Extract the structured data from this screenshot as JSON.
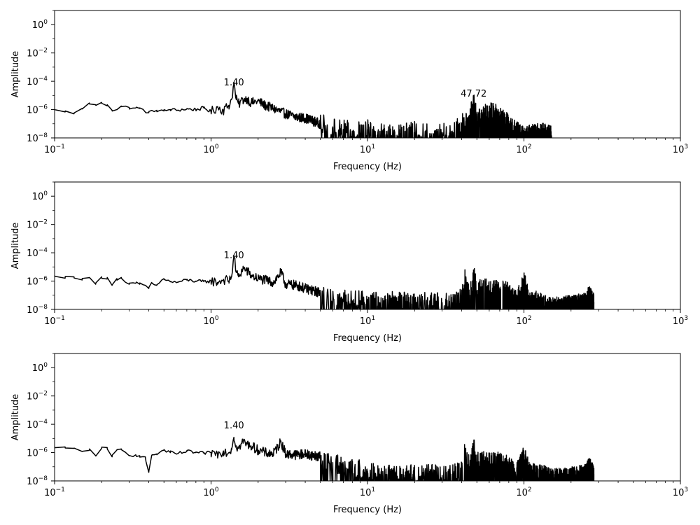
{
  "chart_data": [
    {
      "type": "line",
      "title": "",
      "xlabel": "Frequency (Hz)",
      "ylabel": "Amplitude",
      "xscale": "log",
      "yscale": "log",
      "xlim": [
        0.1,
        1000
      ],
      "ylim": [
        1e-08,
        10
      ],
      "grid": false,
      "line_color": "#000000",
      "x_tick_labels": [
        "10^-1",
        "10^0",
        "10^1",
        "10^2",
        "10^3"
      ],
      "y_tick_labels": [
        "10^-8",
        "10^-6",
        "10^-4",
        "10^-2",
        "10^0"
      ],
      "annotations": [
        {
          "text": "1.40",
          "x": 1.4,
          "y": 5e-05
        },
        {
          "text": "47.72",
          "x": 47.72,
          "y": 8.22e-06
        }
      ],
      "series": [
        {
          "x": [
            0.1,
            0.117,
            0.133,
            0.15,
            0.167,
            0.183,
            0.2,
            0.217,
            0.233,
            0.25,
            0.267,
            0.3,
            0.33,
            0.35,
            0.4,
            0.45,
            0.5,
            0.55,
            0.6,
            0.7,
            0.8,
            0.9,
            1.0,
            1.1,
            1.2,
            1.3,
            1.35,
            1.4,
            1.45,
            1.5,
            1.6,
            1.7,
            1.8,
            2.0,
            2.2,
            2.5,
            3.0,
            3.5,
            4.0,
            5.0,
            6.0,
            7.0,
            8.0,
            10.0,
            12.0,
            15.0,
            20.0,
            25.0,
            30.0,
            35.0,
            40.0,
            45.0,
            47.72,
            50.0,
            55.0,
            60.0,
            65.0,
            70.0,
            80.0,
            90.0,
            100.0,
            110.0,
            120.0,
            130.0,
            140.0,
            150.0
          ],
          "y": [
            1e-06,
            8e-07,
            5e-07,
            1.2e-06,
            2.5e-06,
            2.2e-06,
            3.2e-06,
            2.2e-06,
            9e-07,
            1e-06,
            1.6e-06,
            1.4e-06,
            1.3e-06,
            1.2e-06,
            6e-07,
            9e-07,
            8e-07,
            1e-06,
            9e-07,
            1.1e-06,
            1e-06,
            1.3e-06,
            7e-07,
            1.5e-06,
            9e-07,
            2e-06,
            5e-06,
            7e-05,
            5e-06,
            2.5e-06,
            5e-06,
            6e-06,
            3e-06,
            4e-06,
            2e-06,
            1.2e-06,
            5e-07,
            3e-07,
            2.5e-07,
            1e-07,
            6e-08,
            4e-08,
            3e-08,
            4e-08,
            2e-08,
            1.5e-08,
            3e-08,
            2e-08,
            2.5e-08,
            2e-08,
            1e-07,
            2e-07,
            8e-06,
            3e-07,
            4e-07,
            7e-07,
            6e-07,
            3e-07,
            1e-07,
            3e-08,
            1.5e-08,
            2.5e-08,
            2e-08,
            3e-08,
            2e-08,
            1.5e-08
          ]
        }
      ]
    },
    {
      "type": "line",
      "title": "",
      "xlabel": "Frequency (Hz)",
      "ylabel": "Amplitude",
      "xscale": "log",
      "yscale": "log",
      "xlim": [
        0.1,
        1000
      ],
      "ylim": [
        1e-08,
        10
      ],
      "grid": false,
      "line_color": "#000000",
      "x_tick_labels": [
        "10^-1",
        "10^0",
        "10^1",
        "10^2",
        "10^3"
      ],
      "y_tick_labels": [
        "10^-8",
        "10^-6",
        "10^-4",
        "10^-2",
        "10^0"
      ],
      "annotations": [
        {
          "text": "1.40",
          "x": 1.4,
          "y": 4e-05
        }
      ],
      "series": [
        {
          "x": [
            0.1,
            0.117,
            0.133,
            0.15,
            0.167,
            0.183,
            0.2,
            0.217,
            0.233,
            0.25,
            0.267,
            0.3,
            0.33,
            0.35,
            0.38,
            0.4,
            0.42,
            0.45,
            0.5,
            0.55,
            0.6,
            0.7,
            0.8,
            0.9,
            1.0,
            1.1,
            1.2,
            1.3,
            1.35,
            1.4,
            1.45,
            1.5,
            1.6,
            1.7,
            1.8,
            2.0,
            2.2,
            2.5,
            2.8,
            3.0,
            3.5,
            4.0,
            5.0,
            6.0,
            7.0,
            8.0,
            10.0,
            12.0,
            15.0,
            20.0,
            25.0,
            30.0,
            35.0,
            40.0,
            42.0,
            45.0,
            47.72,
            50.0,
            55.0,
            60.0,
            70.0,
            80.0,
            90.0,
            100.0,
            110.0,
            120.0,
            130.0,
            140.0,
            150.0,
            200.0,
            250.0,
            260.0,
            280.0
          ],
          "y": [
            2.2e-06,
            2.1e-06,
            2e-06,
            1.2e-06,
            1.8e-06,
            6e-07,
            2e-06,
            1.8e-06,
            5e-07,
            1.5e-06,
            1.6e-06,
            6e-07,
            7e-07,
            6e-07,
            5e-07,
            3e-07,
            7e-07,
            5e-07,
            1.5e-06,
            9e-07,
            8e-07,
            1.2e-06,
            1e-06,
            9e-07,
            1e-06,
            8e-07,
            1.3e-06,
            1e-06,
            2e-06,
            6e-05,
            4e-06,
            2e-06,
            8e-06,
            5e-06,
            2.5e-06,
            1.5e-06,
            1.2e-06,
            8e-07,
            4e-06,
            6e-07,
            5e-07,
            3e-07,
            1.5e-07,
            7e-08,
            5e-08,
            4e-08,
            5e-08,
            3e-08,
            4e-08,
            3e-08,
            4e-08,
            3e-08,
            3e-08,
            8e-08,
            1.5e-06,
            1e-07,
            3e-06,
            2e-07,
            4e-07,
            2e-07,
            3e-07,
            1.5e-07,
            4e-08,
            1e-06,
            3e-08,
            4e-08,
            3e-08,
            2e-08,
            1.5e-08,
            2e-08,
            3e-08,
            1e-07,
            3e-08
          ]
        }
      ]
    },
    {
      "type": "line",
      "title": "",
      "xlabel": "Frequency (Hz)",
      "ylabel": "Amplitude",
      "xscale": "log",
      "yscale": "log",
      "xlim": [
        0.1,
        1000
      ],
      "ylim": [
        1e-08,
        10
      ],
      "grid": false,
      "line_color": "#000000",
      "x_tick_labels": [
        "10^-1",
        "10^0",
        "10^1",
        "10^2",
        "10^3"
      ],
      "y_tick_labels": [
        "10^-8",
        "10^-6",
        "10^-4",
        "10^-2",
        "10^0"
      ],
      "annotations": [
        {
          "text": "1.40",
          "x": 1.4,
          "y": 5e-05
        }
      ],
      "series": [
        {
          "x": [
            0.1,
            0.117,
            0.133,
            0.15,
            0.167,
            0.183,
            0.2,
            0.217,
            0.233,
            0.25,
            0.267,
            0.3,
            0.33,
            0.35,
            0.38,
            0.4,
            0.42,
            0.45,
            0.5,
            0.55,
            0.6,
            0.7,
            0.8,
            0.9,
            1.0,
            1.1,
            1.2,
            1.3,
            1.35,
            1.4,
            1.45,
            1.5,
            1.6,
            1.7,
            1.8,
            2.0,
            2.2,
            2.5,
            2.8,
            3.0,
            3.5,
            4.0,
            5.0,
            6.0,
            7.0,
            8.0,
            10.0,
            12.0,
            15.0,
            20.0,
            25.0,
            30.0,
            35.0,
            40.0,
            42.0,
            45.0,
            47.72,
            50.0,
            55.0,
            60.0,
            70.0,
            80.0,
            90.0,
            100.0,
            110.0,
            120.0,
            130.0,
            140.0,
            150.0,
            200.0,
            250.0,
            260.0,
            280.0
          ],
          "y": [
            2.2e-06,
            2.1e-06,
            2e-06,
            1.2e-06,
            1.8e-06,
            6e-07,
            2e-06,
            1.8e-06,
            5e-07,
            1.5e-06,
            1.6e-06,
            6e-07,
            7e-07,
            6e-07,
            5e-07,
            4e-08,
            7e-07,
            8e-07,
            1.5e-06,
            1e-06,
            8e-07,
            1.2e-06,
            1e-06,
            9e-07,
            1e-06,
            8e-07,
            1.3e-06,
            1e-06,
            2e-06,
            1.2e-05,
            3e-06,
            2e-06,
            6e-06,
            4e-06,
            3e-06,
            1.5e-06,
            1e-06,
            8e-07,
            6e-06,
            8e-07,
            7e-07,
            8e-07,
            5e-07,
            2e-07,
            1.2e-07,
            8e-08,
            5e-08,
            3e-08,
            2.5e-08,
            3e-08,
            3e-08,
            2.5e-08,
            3e-08,
            6e-08,
            1.5e-06,
            1e-07,
            4e-06,
            2e-07,
            3e-07,
            2e-07,
            2.5e-07,
            1.5e-07,
            4e-08,
            6e-07,
            3e-08,
            4e-08,
            3e-08,
            2e-08,
            1.5e-08,
            2e-08,
            3e-08,
            1e-07,
            3e-08
          ]
        }
      ]
    }
  ]
}
